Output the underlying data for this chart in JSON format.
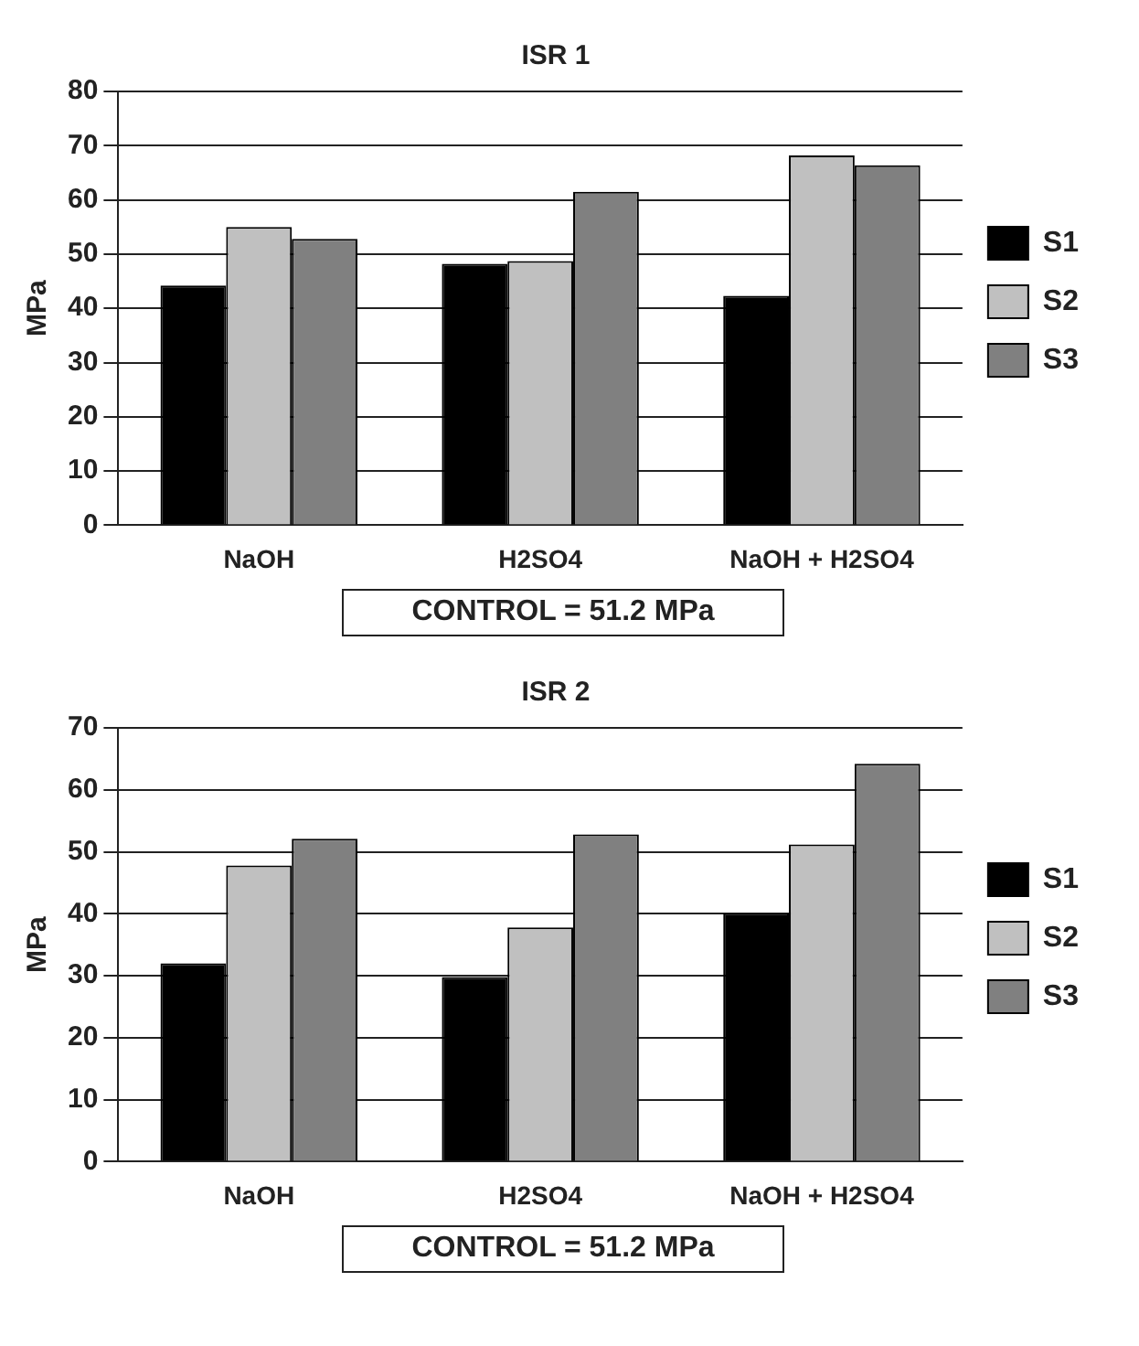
{
  "chart_data": [
    {
      "type": "bar",
      "title": "ISR 1",
      "ylabel": "MPa",
      "categories": [
        "NaOH",
        "H2SO4",
        "NaOH + H2SO4"
      ],
      "series": [
        {
          "name": "S1",
          "color": "#000000",
          "values": [
            44.2,
            48.2,
            42.3
          ]
        },
        {
          "name": "S2",
          "color": "#c0c0c0",
          "values": [
            55,
            48.7,
            68.2
          ]
        },
        {
          "name": "S3",
          "color": "#808080",
          "values": [
            52.8,
            61.5,
            66.4
          ]
        }
      ],
      "ylim": [
        0,
        80
      ],
      "yticks": [
        0,
        10,
        20,
        30,
        40,
        50,
        60,
        70,
        80
      ],
      "grid": "y",
      "legend": "right",
      "annotations": [
        "CONTROL = 51.2 MPa"
      ]
    },
    {
      "type": "bar",
      "title": "ISR 2",
      "ylabel": "MPa",
      "categories": [
        "NaOH",
        "H2SO4",
        "NaOH + H2SO4"
      ],
      "series": [
        {
          "name": "S1",
          "color": "#000000",
          "values": [
            32,
            29.8,
            40.1
          ]
        },
        {
          "name": "S2",
          "color": "#c0c0c0",
          "values": [
            47.8,
            37.8,
            51.2
          ]
        },
        {
          "name": "S3",
          "color": "#808080",
          "values": [
            52.1,
            52.8,
            64.2
          ]
        }
      ],
      "ylim": [
        0,
        70
      ],
      "yticks": [
        0,
        10,
        20,
        30,
        40,
        50,
        60,
        70
      ],
      "grid": "y",
      "legend": "right",
      "annotations": [
        "CONTROL = 51.2 MPa"
      ]
    }
  ]
}
